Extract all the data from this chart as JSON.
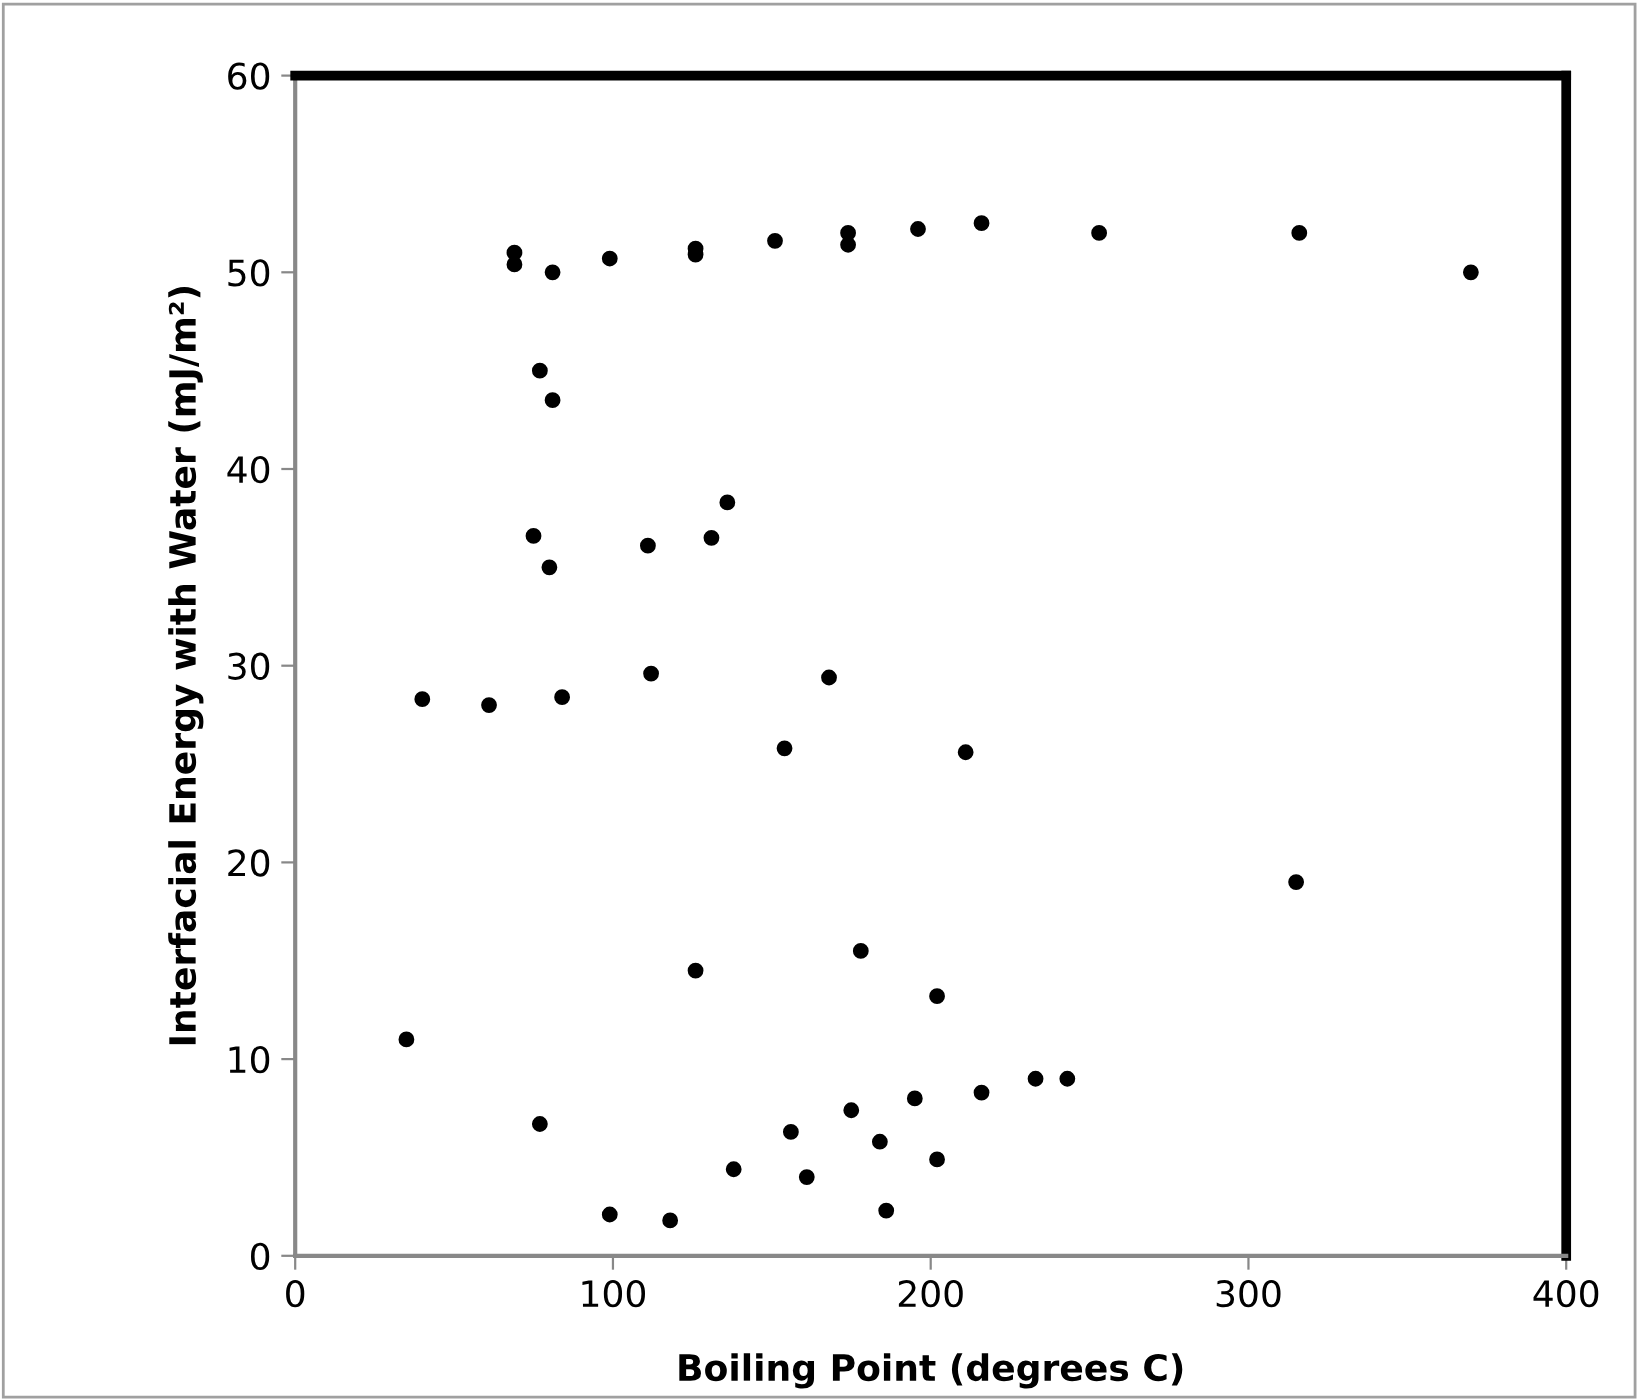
{
  "chart_data": {
    "type": "scatter",
    "xlabel": "Boiling Point (degrees C)",
    "ylabel": "Interfacial Energy with Water (mJ/m²)",
    "x": [
      69,
      69,
      81,
      99,
      126,
      126,
      151,
      174,
      174,
      196,
      216,
      253,
      316,
      370,
      77,
      81,
      75,
      80,
      111,
      131,
      136,
      40,
      61,
      84,
      112,
      168,
      154,
      211,
      315,
      126,
      178,
      202,
      35,
      77,
      175,
      195,
      216,
      233,
      243,
      156,
      184,
      138,
      161,
      202,
      99,
      118,
      186
    ],
    "values": [
      51.0,
      50.4,
      50.0,
      50.7,
      51.2,
      50.9,
      51.6,
      52.0,
      51.4,
      52.2,
      52.5,
      52.0,
      52.0,
      50.0,
      45.0,
      43.5,
      36.6,
      35.0,
      36.1,
      36.5,
      38.3,
      28.3,
      28.0,
      28.4,
      29.6,
      29.4,
      25.8,
      25.6,
      19.0,
      14.5,
      15.5,
      13.2,
      11.0,
      6.7,
      7.4,
      8.0,
      8.3,
      9.0,
      9.0,
      6.3,
      5.8,
      4.4,
      4.0,
      4.9,
      2.1,
      1.8,
      2.3
    ],
    "color": "#000000",
    "marker": "circle",
    "xlim": [
      0,
      400
    ],
    "ylim": [
      0,
      60
    ],
    "xticks": [
      0,
      100,
      200,
      300,
      400
    ],
    "yticks": [
      0,
      10,
      20,
      30,
      40,
      50,
      60
    ],
    "grid": false
  }
}
